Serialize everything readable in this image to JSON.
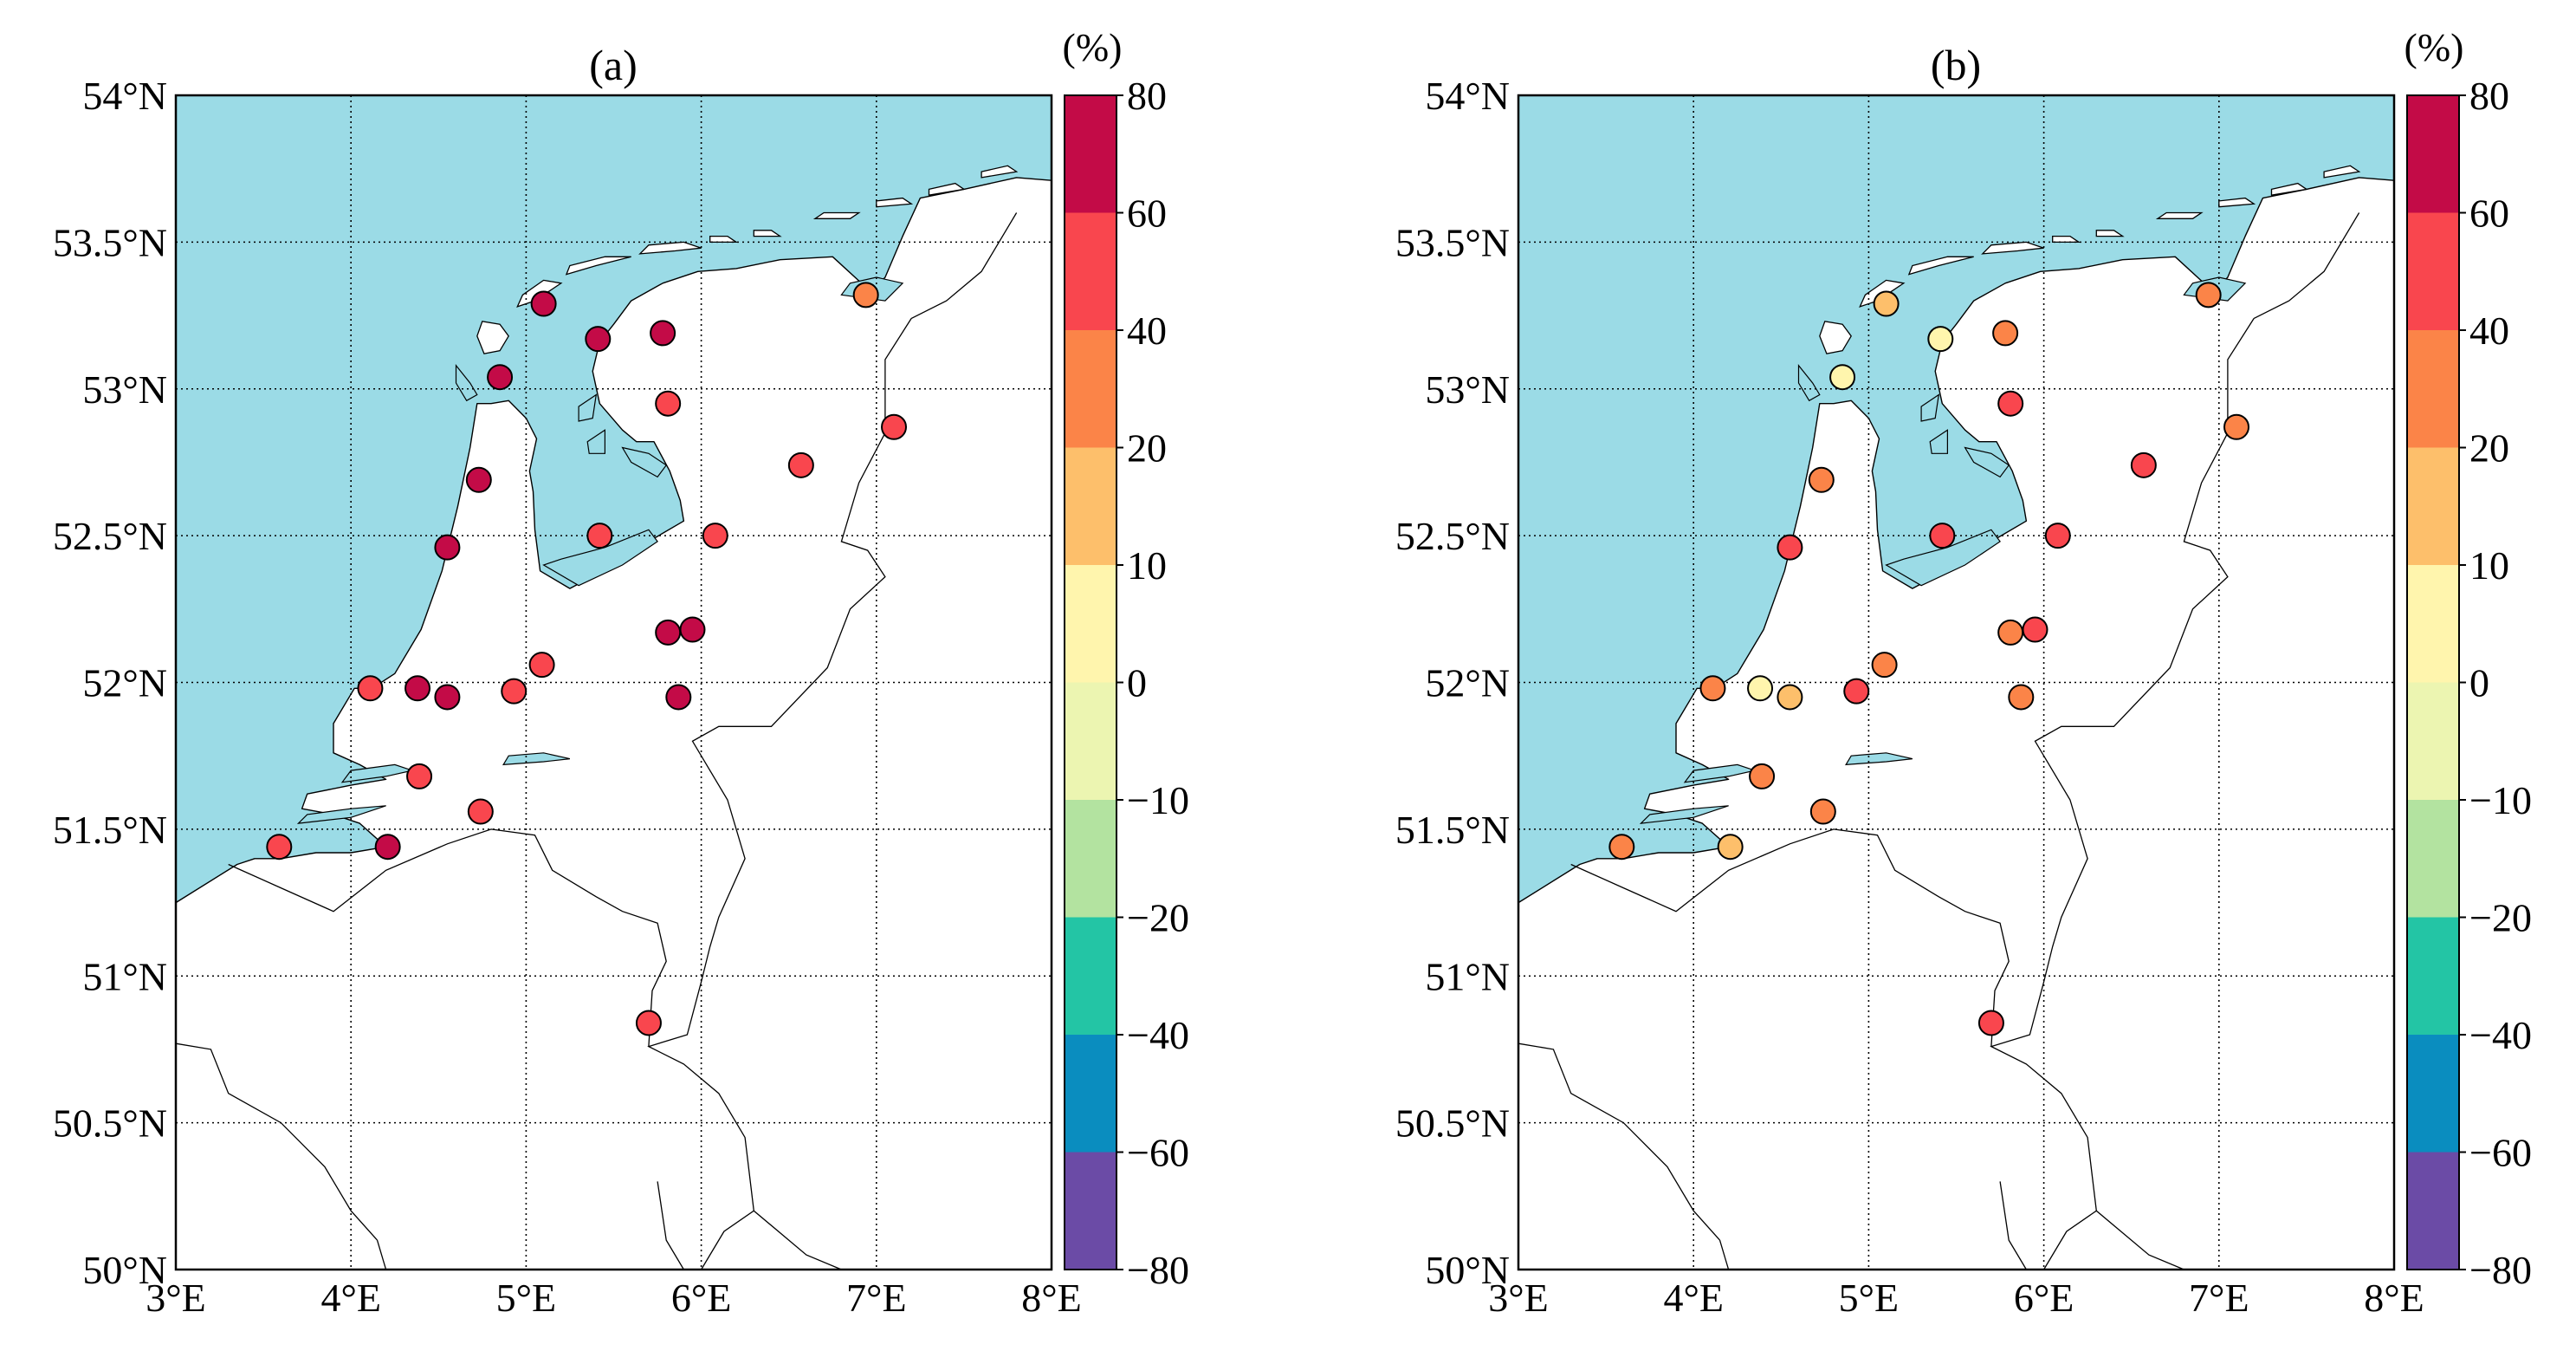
{
  "colorbar": {
    "unit": "(%)",
    "bounds": [
      -80,
      -60,
      -40,
      -20,
      -10,
      0,
      10,
      20,
      40,
      60,
      80
    ],
    "colors": [
      "#6b4ba6",
      "#0a8dbf",
      "#23c5a5",
      "#b3e3a0",
      "#ecf5b1",
      "#fff5ad",
      "#fdbf6b",
      "#fb8448",
      "#f9464e",
      "#c30b47"
    ],
    "tick_labels": [
      "80",
      "60",
      "40",
      "20",
      "10",
      "0",
      "−10",
      "−20",
      "−40",
      "−60",
      "−80"
    ]
  },
  "map": {
    "lon_range": [
      3,
      8
    ],
    "lat_range": [
      50,
      54
    ],
    "lon_ticks": [
      3,
      4,
      5,
      6,
      7,
      8
    ],
    "lat_ticks": [
      50,
      50.5,
      51,
      51.5,
      52,
      52.5,
      53,
      53.5,
      54
    ],
    "lon_tick_labels": [
      "3°E",
      "4°E",
      "5°E",
      "6°E",
      "7°E",
      "8°E"
    ],
    "lat_tick_labels": [
      "50°N",
      "50.5°N",
      "51°N",
      "51.5°N",
      "52°N",
      "52.5°N",
      "53°N",
      "53.5°N",
      "54°N"
    ],
    "sea_color": "#9bdbe6",
    "land_color": "#ffffff",
    "grid": "dotted"
  },
  "stations": [
    {
      "lon": 5.1,
      "lat": 53.29
    },
    {
      "lon": 5.41,
      "lat": 53.17
    },
    {
      "lon": 5.78,
      "lat": 53.19
    },
    {
      "lon": 4.85,
      "lat": 53.04
    },
    {
      "lon": 5.81,
      "lat": 52.95
    },
    {
      "lon": 6.94,
      "lat": 53.32
    },
    {
      "lon": 7.1,
      "lat": 52.87
    },
    {
      "lon": 6.57,
      "lat": 52.74
    },
    {
      "lon": 4.73,
      "lat": 52.69
    },
    {
      "lon": 4.55,
      "lat": 52.46
    },
    {
      "lon": 5.42,
      "lat": 52.5
    },
    {
      "lon": 6.08,
      "lat": 52.5
    },
    {
      "lon": 5.81,
      "lat": 52.17
    },
    {
      "lon": 5.95,
      "lat": 52.18
    },
    {
      "lon": 5.09,
      "lat": 52.06
    },
    {
      "lon": 4.11,
      "lat": 51.98
    },
    {
      "lon": 4.38,
      "lat": 51.98
    },
    {
      "lon": 4.55,
      "lat": 51.95
    },
    {
      "lon": 4.93,
      "lat": 51.97
    },
    {
      "lon": 5.87,
      "lat": 51.95
    },
    {
      "lon": 4.39,
      "lat": 51.68
    },
    {
      "lon": 4.74,
      "lat": 51.56
    },
    {
      "lon": 3.59,
      "lat": 51.44
    },
    {
      "lon": 4.21,
      "lat": 51.44
    },
    {
      "lon": 5.7,
      "lat": 50.84
    }
  ],
  "panels": [
    {
      "title": "(a)",
      "values": [
        65,
        65,
        65,
        65,
        50,
        30,
        50,
        50,
        65,
        65,
        50,
        50,
        65,
        65,
        50,
        50,
        65,
        65,
        50,
        65,
        50,
        50,
        50,
        65,
        50
      ]
    },
    {
      "title": "(b)",
      "values": [
        15,
        5,
        30,
        5,
        50,
        30,
        30,
        50,
        30,
        50,
        50,
        50,
        30,
        50,
        30,
        30,
        5,
        15,
        50,
        30,
        30,
        30,
        30,
        15,
        50
      ]
    }
  ]
}
